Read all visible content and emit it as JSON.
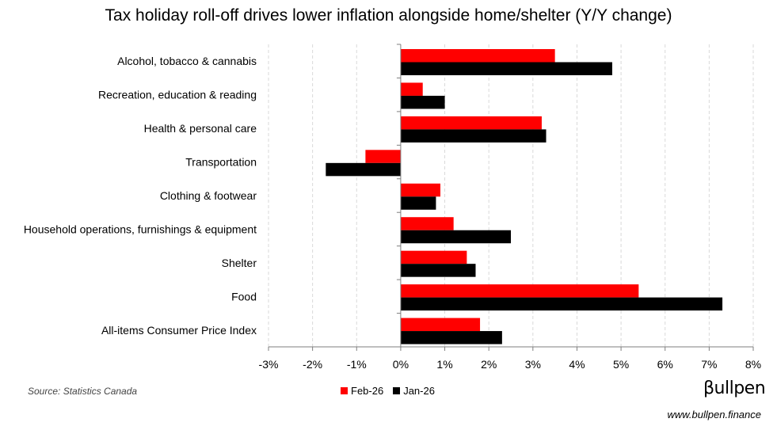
{
  "chart_data": {
    "type": "bar",
    "orientation": "horizontal",
    "title": "Tax holiday roll-off drives lower inflation alongside home/shelter (Y/Y change)",
    "categories": [
      "Alcohol, tobacco & cannabis",
      "Recreation, education & reading",
      "Health & personal care",
      "Transportation",
      "Clothing & footwear",
      "Household operations, furnishings & equipment",
      "Shelter",
      "Food",
      "All-items Consumer Price Index"
    ],
    "series": [
      {
        "name": "Feb-26",
        "color": "#ff0000",
        "values": [
          3.5,
          0.5,
          3.2,
          -0.8,
          0.9,
          1.2,
          1.5,
          5.4,
          1.8
        ]
      },
      {
        "name": "Jan-26",
        "color": "#000000",
        "values": [
          4.8,
          1.0,
          3.3,
          -1.7,
          0.8,
          2.5,
          1.7,
          7.3,
          2.3
        ]
      }
    ],
    "xlim": [
      -3,
      8
    ],
    "xticks": [
      -3,
      -2,
      -1,
      0,
      1,
      2,
      3,
      4,
      5,
      6,
      7,
      8
    ],
    "xtick_labels": [
      "-3%",
      "-2%",
      "-1%",
      "0%",
      "1%",
      "2%",
      "3%",
      "4%",
      "5%",
      "6%",
      "7%",
      "8%"
    ],
    "grid": "vertical-dashed",
    "legend_position": "bottom-center"
  },
  "source": "Source: Statistics Canada",
  "brand": {
    "logo": "βullpen",
    "url": "www.bullpen.finance"
  }
}
